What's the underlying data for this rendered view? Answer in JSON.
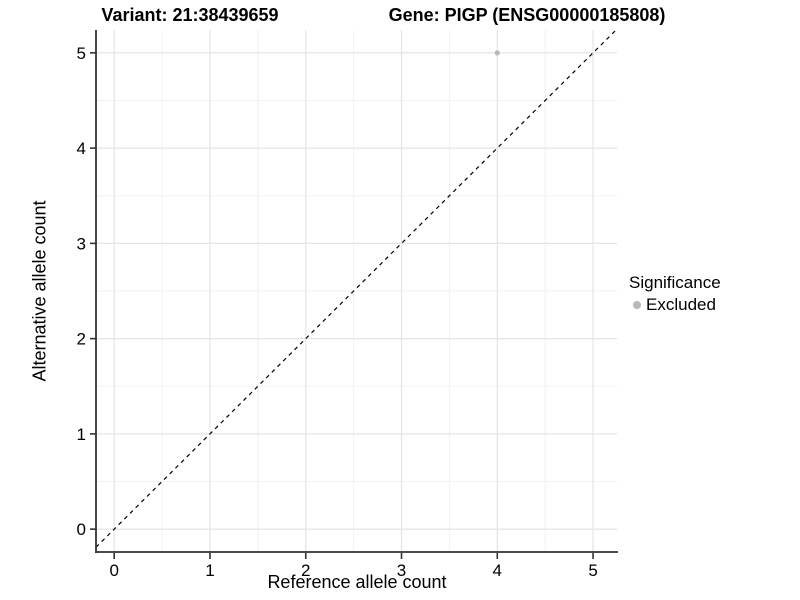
{
  "chart_data": {
    "type": "scatter",
    "titles": [
      "Variant: 21:38439659",
      "Gene: PIGP (ENSG00000185808)"
    ],
    "xlabel": "Reference allele count",
    "ylabel": "Alternative allele count",
    "xlim": [
      -0.19,
      5.25
    ],
    "ylim": [
      -0.24,
      5.24
    ],
    "xticks": [
      "0",
      "1",
      "2",
      "3",
      "4",
      "5"
    ],
    "yticks": [
      "0",
      "1",
      "2",
      "3",
      "4",
      "5"
    ],
    "grid": {
      "major": true,
      "minor": true
    },
    "legend": {
      "title": "Significance",
      "position": "right",
      "entries": [
        {
          "label": "Excluded",
          "color": "#b8b8b8"
        }
      ]
    },
    "series": [
      {
        "name": "Excluded",
        "color": "#b8b8b8",
        "point_radius": 2.6,
        "points": [
          {
            "x": 4,
            "y": 5
          }
        ]
      }
    ],
    "reference_line": {
      "equation": "y = x",
      "slope": 1,
      "intercept": 0,
      "style": "dashed",
      "color": "#000000"
    }
  },
  "colors": {
    "background": "#ffffff",
    "grid_major": "#e4e4e4",
    "grid_minor": "#f2f2f2",
    "axis_line": "#333333",
    "tick_mark": "#333333",
    "text": "#000000"
  }
}
